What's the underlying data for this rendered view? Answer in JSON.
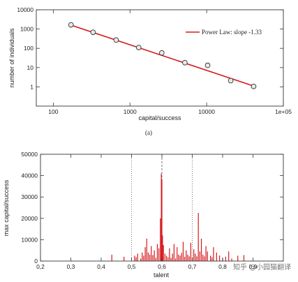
{
  "chart_data": [
    {
      "type": "scatter",
      "xlabel": "capital/success",
      "ylabel": "number of individuals",
      "xscale": "log",
      "yscale": "log",
      "xlim": [
        60,
        100000
      ],
      "ylim": [
        0.1,
        10000
      ],
      "xticks": [
        "100",
        "1000",
        "10000",
        "1e+05"
      ],
      "xtick_values": [
        100,
        1000,
        10000,
        100000
      ],
      "yticks": [
        "1",
        "10",
        "100",
        "1000",
        "10000"
      ],
      "ytick_values": [
        1,
        10,
        100,
        1000,
        10000
      ],
      "points": [
        {
          "x": 170,
          "y": 1650
        },
        {
          "x": 330,
          "y": 680
        },
        {
          "x": 660,
          "y": 270
        },
        {
          "x": 1300,
          "y": 110
        },
        {
          "x": 2600,
          "y": 58
        },
        {
          "x": 5200,
          "y": 18
        },
        {
          "x": 10300,
          "y": 13
        },
        {
          "x": 20600,
          "y": 2.1
        },
        {
          "x": 41000,
          "y": 1.05
        }
      ],
      "fit": {
        "x": [
          170,
          41000
        ],
        "y": [
          1600,
          1.1
        ],
        "color": "#d7191c"
      },
      "legend": {
        "label": "Power Law: slope -1.33",
        "position": "top-right"
      },
      "caption": "(a)",
      "marker_color": "#333333"
    },
    {
      "type": "bar",
      "xlabel": "talent",
      "ylabel": "max capital/success",
      "xlim": [
        0.2,
        1.0
      ],
      "ylim": [
        0,
        50000
      ],
      "xticks": [
        "0,2",
        "0,3",
        "0,4",
        "0,5",
        "0,6",
        "0,7",
        "0,8",
        "0,9"
      ],
      "xtick_values": [
        0.2,
        0.3,
        0.4,
        0.5,
        0.6,
        0.7,
        0.8,
        0.9
      ],
      "yticks": [
        "0",
        "10000",
        "20000",
        "30000",
        "40000",
        "50000"
      ],
      "ytick_values": [
        0,
        10000,
        20000,
        30000,
        40000,
        50000
      ],
      "bar_color": "#d7191c",
      "vlines": [
        {
          "x": 0.5,
          "style": "dotted"
        },
        {
          "x": 0.6,
          "style": "dashed"
        },
        {
          "x": 0.7,
          "style": "dotted"
        }
      ],
      "x": [
        0.435,
        0.475,
        0.51,
        0.515,
        0.52,
        0.53,
        0.535,
        0.54,
        0.545,
        0.55,
        0.555,
        0.56,
        0.565,
        0.57,
        0.575,
        0.58,
        0.585,
        0.59,
        0.595,
        0.598,
        0.6,
        0.602,
        0.605,
        0.61,
        0.615,
        0.62,
        0.625,
        0.63,
        0.635,
        0.64,
        0.645,
        0.65,
        0.655,
        0.66,
        0.665,
        0.67,
        0.675,
        0.68,
        0.685,
        0.69,
        0.695,
        0.7,
        0.705,
        0.71,
        0.715,
        0.72,
        0.725,
        0.73,
        0.735,
        0.74,
        0.745,
        0.75,
        0.76,
        0.765,
        0.77,
        0.78,
        0.79,
        0.8,
        0.81,
        0.82,
        0.83,
        0.85,
        0.87
      ],
      "values": [
        3000,
        2000,
        2500,
        1800,
        3500,
        1200,
        4000,
        2500,
        6500,
        10500,
        4000,
        3000,
        7000,
        2800,
        5000,
        1500,
        8000,
        6000,
        20000,
        41000,
        38000,
        12000,
        7500,
        3500,
        2500,
        1800,
        6000,
        1500,
        3500,
        8000,
        1200,
        6500,
        3000,
        2500,
        3800,
        9000,
        2000,
        5000,
        3000,
        2200,
        8500,
        1500,
        5500,
        3500,
        2200,
        22500,
        4500,
        10500,
        3000,
        2200,
        7000,
        4500,
        2500,
        1800,
        6500,
        4000,
        2600,
        1500,
        2000,
        4500,
        1200,
        2500,
        2800
      ]
    }
  ],
  "watermark": "知乎 @小园猫翻译"
}
